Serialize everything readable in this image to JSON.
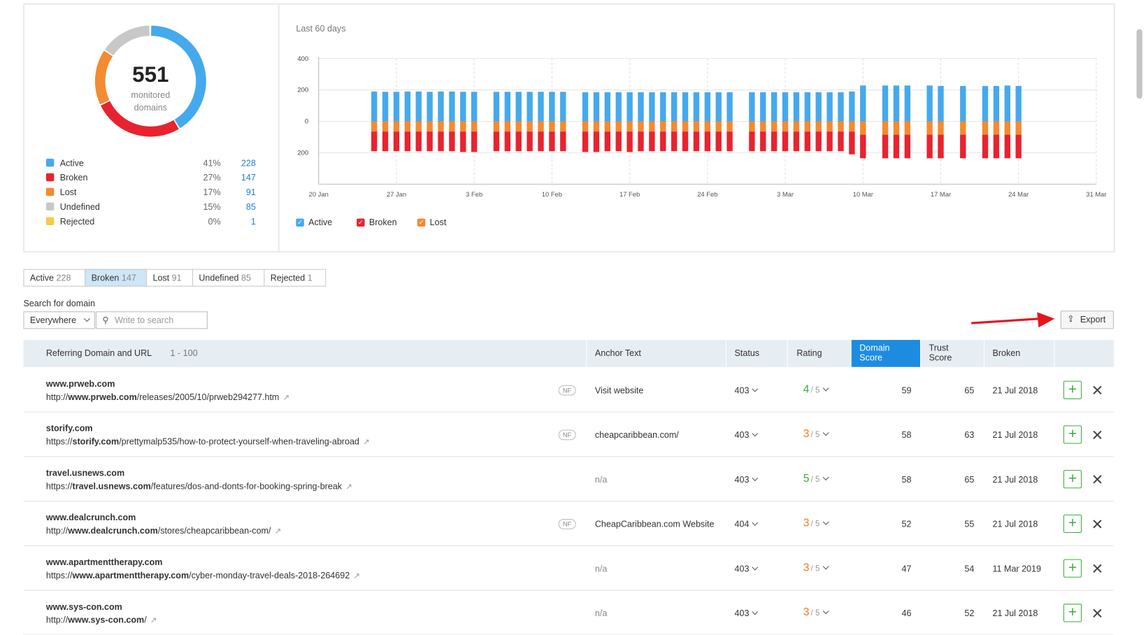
{
  "donut": {
    "type": "donut",
    "center_value": 551,
    "center_label": "monitored domains",
    "categories": [
      "Active",
      "Broken",
      "Lost",
      "Undefined",
      "Rejected"
    ],
    "values": [
      228,
      147,
      91,
      85,
      1
    ],
    "percent_labels": [
      "41%",
      "27%",
      "17%",
      "15%",
      "0%"
    ],
    "colors": [
      "#45a9ee",
      "#e8232f",
      "#f48a31",
      "#c8c8c8",
      "#f7c94a"
    ]
  },
  "chart_data": {
    "type": "bar",
    "subtitle": "Last 60 days",
    "stacked": true,
    "x": [
      "25 Jan",
      "26 Jan",
      "27 Jan",
      "28 Jan",
      "29 Jan",
      "30 Jan",
      "31 Jan",
      "1 Feb",
      "2 Feb",
      "3 Feb",
      "5 Feb",
      "6 Feb",
      "7 Feb",
      "8 Feb",
      "9 Feb",
      "10 Feb",
      "11 Feb",
      "13 Feb",
      "14 Feb",
      "15 Feb",
      "16 Feb",
      "17 Feb",
      "18 Feb",
      "19 Feb",
      "20 Feb",
      "21 Feb",
      "22 Feb",
      "23 Feb",
      "24 Feb",
      "25 Feb",
      "26 Feb",
      "28 Feb",
      "1 Mar",
      "2 Mar",
      "3 Mar",
      "4 Mar",
      "5 Mar",
      "6 Mar",
      "7 Mar",
      "8 Mar",
      "9 Mar",
      "10 Mar",
      "12 Mar",
      "13 Mar",
      "14 Mar",
      "16 Mar",
      "17 Mar",
      "19 Mar",
      "21 Mar",
      "22 Mar",
      "23 Mar",
      "24 Mar"
    ],
    "series": [
      {
        "name": "Active",
        "color": "#45a9ee",
        "values": [
          190,
          188,
          188,
          190,
          190,
          188,
          190,
          190,
          188,
          188,
          188,
          188,
          188,
          188,
          188,
          188,
          188,
          185,
          185,
          185,
          185,
          185,
          185,
          185,
          185,
          185,
          185,
          185,
          185,
          185,
          185,
          185,
          185,
          185,
          185,
          185,
          185,
          185,
          185,
          185,
          190,
          228,
          228,
          228,
          228,
          228,
          225,
          225,
          225,
          225,
          228,
          225
        ]
      },
      {
        "name": "Lost",
        "color": "#f48a31",
        "values": [
          -65,
          -65,
          -65,
          -65,
          -65,
          -65,
          -65,
          -65,
          -65,
          -65,
          -65,
          -65,
          -65,
          -65,
          -65,
          -65,
          -65,
          -65,
          -65,
          -65,
          -65,
          -65,
          -65,
          -65,
          -65,
          -65,
          -65,
          -65,
          -65,
          -65,
          -65,
          -65,
          -65,
          -65,
          -65,
          -65,
          -65,
          -65,
          -65,
          -65,
          -65,
          -85,
          -85,
          -85,
          -85,
          -85,
          -85,
          -85,
          -85,
          -85,
          -85,
          -85
        ]
      },
      {
        "name": "Broken",
        "color": "#e8232f",
        "values": [
          -125,
          -125,
          -125,
          -125,
          -125,
          -125,
          -125,
          -125,
          -130,
          -130,
          -125,
          -125,
          -125,
          -125,
          -125,
          -125,
          -125,
          -130,
          -130,
          -125,
          -125,
          -130,
          -125,
          -125,
          -125,
          -125,
          -125,
          -125,
          -125,
          -125,
          -125,
          -125,
          -125,
          -125,
          -125,
          -125,
          -125,
          -125,
          -125,
          -125,
          -145,
          -150,
          -150,
          -150,
          -150,
          -150,
          -150,
          -150,
          -150,
          -150,
          -150,
          -150
        ]
      }
    ],
    "legend": [
      "Active",
      "Broken",
      "Lost"
    ],
    "ylim": [
      -400,
      400
    ],
    "yticks": [
      400,
      200,
      0,
      {
        "value": -200,
        "label": "200"
      }
    ],
    "xlim": [
      "20 Jan",
      "31 Mar"
    ],
    "xticks": [
      "20 Jan",
      "27 Jan",
      "3 Feb",
      "10 Feb",
      "17 Feb",
      "24 Feb",
      "3 Mar",
      "10 Mar",
      "17 Mar",
      "24 Mar",
      "31 Mar"
    ],
    "grid": true
  },
  "tabs": [
    {
      "label": "Active",
      "count": 228
    },
    {
      "label": "Broken",
      "count": 147,
      "selected": true
    },
    {
      "label": "Lost",
      "count": 91
    },
    {
      "label": "Undefined",
      "count": 85
    },
    {
      "label": "Rejected",
      "count": 1
    }
  ],
  "search": {
    "label": "Search for domain",
    "scope": "Everywhere",
    "placeholder": "Write to search"
  },
  "export": "Export",
  "table": {
    "headers": [
      "Referring Domain and URL",
      "Anchor Text",
      "Status",
      "Rating",
      "Domain Score",
      "Trust Score",
      "Broken"
    ],
    "range": "1 - 100",
    "rating_scale": "/ 5",
    "rows": [
      {
        "domain": "www.prweb.com",
        "scheme": "http://",
        "host": "www.prweb.com",
        "path": "/releases/2005/10/prweb294277.htm",
        "nf": "NF",
        "anchor": "Visit website",
        "status": "403",
        "rating": 4,
        "domain_score": 59,
        "trust_score": 65,
        "broken": "21 Jul 2018"
      },
      {
        "domain": "storify.com",
        "scheme": "https://",
        "host": "storify.com",
        "path": "/prettymalp535/how-to-protect-yourself-when-traveling-abroad",
        "nf": "NF",
        "anchor": "cheapcaribbean.com/",
        "status": "403",
        "rating": 3,
        "domain_score": 58,
        "trust_score": 63,
        "broken": "21 Jul 2018"
      },
      {
        "domain": "travel.usnews.com",
        "scheme": "https://",
        "host": "travel.usnews.com",
        "path": "/features/dos-and-donts-for-booking-spring-break",
        "anchor": "n/a",
        "status": "403",
        "rating": 5,
        "domain_score": 58,
        "trust_score": 65,
        "broken": "21 Jul 2018"
      },
      {
        "domain": "www.dealcrunch.com",
        "scheme": "http://",
        "host": "www.dealcrunch.com",
        "path": "/stores/cheapcaribbean-com/",
        "nf": "NF",
        "anchor": "CheapCaribbean.com Website",
        "status": "404",
        "rating": 3,
        "domain_score": 52,
        "trust_score": 55,
        "broken": "21 Jul 2018"
      },
      {
        "domain": "www.apartmenttherapy.com",
        "scheme": "https://",
        "host": "www.apartmenttherapy.com",
        "path": "/cyber-monday-travel-deals-2018-264692",
        "anchor": "n/a",
        "status": "403",
        "rating": 3,
        "domain_score": 47,
        "trust_score": 54,
        "broken": "11 Mar 2019"
      },
      {
        "domain": "www.sys-con.com",
        "scheme": "http://",
        "host": "www.sys-con.com",
        "path": "/",
        "anchor": "n/a",
        "status": "403",
        "rating": 3,
        "domain_score": 46,
        "trust_score": 52,
        "broken": "21 Jul 2018"
      }
    ]
  }
}
